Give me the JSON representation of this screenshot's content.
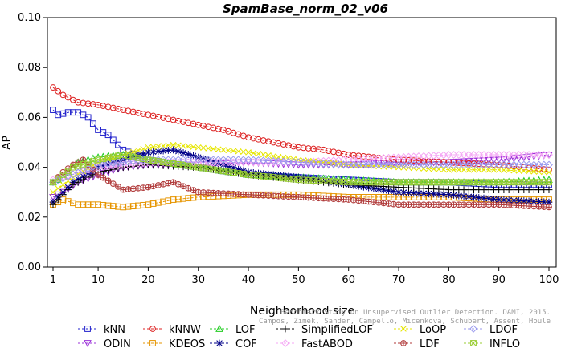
{
  "chart_data": {
    "type": "line",
    "title": "SpamBase_norm_02_v06",
    "xlabel": "Neighborhood size",
    "ylabel": "AP",
    "xlim": [
      0,
      100
    ],
    "ylim": [
      0,
      0.1
    ],
    "xticks": [
      1,
      10,
      20,
      30,
      40,
      50,
      60,
      70,
      80,
      90,
      100
    ],
    "yticks": [
      "0.00",
      "0.02",
      "0.04",
      "0.06",
      "0.08",
      "0.10"
    ],
    "grid": false,
    "legend_position": "bottom",
    "watermark": [
      "Benchmark Study on Unsupervised Outlier Detection. DAMI, 2015.",
      "Campos, Zimek, Sander, Campello, Micenkova, Schubert, Assent, Houle"
    ],
    "series": [
      {
        "name": "kNN",
        "color": "#2222cc",
        "marker": "square",
        "x_range": [
          1,
          100
        ],
        "anchors": [
          [
            1,
            0.063
          ],
          [
            2,
            0.061
          ],
          [
            4,
            0.062
          ],
          [
            6,
            0.062
          ],
          [
            8,
            0.06
          ],
          [
            10,
            0.055
          ],
          [
            12,
            0.053
          ],
          [
            15,
            0.047
          ],
          [
            20,
            0.043
          ],
          [
            30,
            0.04
          ],
          [
            40,
            0.037
          ],
          [
            50,
            0.036
          ],
          [
            60,
            0.035
          ],
          [
            70,
            0.034
          ],
          [
            80,
            0.034
          ],
          [
            90,
            0.033
          ],
          [
            100,
            0.033
          ]
        ]
      },
      {
        "name": "ODIN",
        "color": "#9b30d8",
        "marker": "triangle-down",
        "x_range": [
          1,
          100
        ],
        "anchors": [
          [
            1,
            0.028
          ],
          [
            3,
            0.03
          ],
          [
            6,
            0.034
          ],
          [
            10,
            0.037
          ],
          [
            15,
            0.04
          ],
          [
            20,
            0.041
          ],
          [
            30,
            0.041
          ],
          [
            40,
            0.042
          ],
          [
            50,
            0.041
          ],
          [
            60,
            0.041
          ],
          [
            70,
            0.042
          ],
          [
            80,
            0.042
          ],
          [
            90,
            0.043
          ],
          [
            100,
            0.045
          ]
        ]
      },
      {
        "name": "kNNW",
        "color": "#dd2222",
        "marker": "circle",
        "x_range": [
          1,
          100
        ],
        "anchors": [
          [
            1,
            0.072
          ],
          [
            3,
            0.069
          ],
          [
            6,
            0.066
          ],
          [
            10,
            0.065
          ],
          [
            15,
            0.063
          ],
          [
            20,
            0.061
          ],
          [
            25,
            0.059
          ],
          [
            30,
            0.057
          ],
          [
            35,
            0.055
          ],
          [
            40,
            0.052
          ],
          [
            45,
            0.05
          ],
          [
            50,
            0.048
          ],
          [
            55,
            0.047
          ],
          [
            60,
            0.045
          ],
          [
            65,
            0.044
          ],
          [
            70,
            0.043
          ],
          [
            80,
            0.042
          ],
          [
            90,
            0.041
          ],
          [
            100,
            0.039
          ]
        ]
      },
      {
        "name": "KDEOS",
        "color": "#e69500",
        "marker": "square",
        "x_range": [
          1,
          100
        ],
        "anchors": [
          [
            1,
            0.025
          ],
          [
            3,
            0.027
          ],
          [
            6,
            0.025
          ],
          [
            10,
            0.025
          ],
          [
            15,
            0.024
          ],
          [
            20,
            0.025
          ],
          [
            25,
            0.027
          ],
          [
            30,
            0.028
          ],
          [
            40,
            0.029
          ],
          [
            50,
            0.029
          ],
          [
            60,
            0.028
          ],
          [
            70,
            0.028
          ],
          [
            80,
            0.028
          ],
          [
            90,
            0.027
          ],
          [
            100,
            0.027
          ]
        ]
      },
      {
        "name": "LOF",
        "color": "#22cc22",
        "marker": "triangle-up",
        "x_range": [
          1,
          100
        ],
        "anchors": [
          [
            1,
            0.034
          ],
          [
            3,
            0.036
          ],
          [
            6,
            0.042
          ],
          [
            10,
            0.044
          ],
          [
            15,
            0.045
          ],
          [
            20,
            0.043
          ],
          [
            30,
            0.04
          ],
          [
            40,
            0.037
          ],
          [
            50,
            0.036
          ],
          [
            60,
            0.035
          ],
          [
            70,
            0.034
          ],
          [
            80,
            0.034
          ],
          [
            90,
            0.034
          ],
          [
            100,
            0.035
          ]
        ]
      },
      {
        "name": "COF",
        "color": "#000088",
        "marker": "asterisk",
        "x_range": [
          1,
          100
        ],
        "anchors": [
          [
            1,
            0.026
          ],
          [
            5,
            0.034
          ],
          [
            10,
            0.04
          ],
          [
            15,
            0.043
          ],
          [
            20,
            0.046
          ],
          [
            25,
            0.047
          ],
          [
            30,
            0.044
          ],
          [
            40,
            0.038
          ],
          [
            50,
            0.036
          ],
          [
            60,
            0.033
          ],
          [
            70,
            0.03
          ],
          [
            80,
            0.029
          ],
          [
            90,
            0.027
          ],
          [
            100,
            0.026
          ]
        ]
      },
      {
        "name": "SimplifiedLOF",
        "color": "#000000",
        "marker": "plus",
        "x_range": [
          1,
          100
        ],
        "anchors": [
          [
            1,
            0.025
          ],
          [
            5,
            0.033
          ],
          [
            10,
            0.038
          ],
          [
            15,
            0.04
          ],
          [
            20,
            0.041
          ],
          [
            30,
            0.04
          ],
          [
            40,
            0.037
          ],
          [
            50,
            0.035
          ],
          [
            60,
            0.033
          ],
          [
            70,
            0.032
          ],
          [
            80,
            0.031
          ],
          [
            90,
            0.031
          ],
          [
            100,
            0.031
          ]
        ]
      },
      {
        "name": "FastABOD",
        "color": "#f4a6f4",
        "marker": "diamond",
        "x_range": [
          1,
          100
        ],
        "anchors": [
          [
            1,
            0.035
          ],
          [
            10,
            0.04
          ],
          [
            20,
            0.042
          ],
          [
            30,
            0.042
          ],
          [
            40,
            0.042
          ],
          [
            50,
            0.042
          ],
          [
            60,
            0.043
          ],
          [
            70,
            0.044
          ],
          [
            80,
            0.045
          ],
          [
            90,
            0.045
          ],
          [
            100,
            0.045
          ]
        ]
      },
      {
        "name": "LoOP",
        "color": "#e6e600",
        "marker": "cross",
        "x_range": [
          1,
          100
        ],
        "anchors": [
          [
            1,
            0.03
          ],
          [
            5,
            0.036
          ],
          [
            10,
            0.042
          ],
          [
            15,
            0.045
          ],
          [
            20,
            0.048
          ],
          [
            25,
            0.049
          ],
          [
            30,
            0.048
          ],
          [
            40,
            0.046
          ],
          [
            50,
            0.043
          ],
          [
            60,
            0.041
          ],
          [
            70,
            0.04
          ],
          [
            80,
            0.039
          ],
          [
            90,
            0.039
          ],
          [
            100,
            0.038
          ]
        ]
      },
      {
        "name": "LDF",
        "color": "#b03a3a",
        "marker": "circle-plus",
        "x_range": [
          1,
          100
        ],
        "anchors": [
          [
            1,
            0.034
          ],
          [
            3,
            0.038
          ],
          [
            5,
            0.041
          ],
          [
            7,
            0.043
          ],
          [
            10,
            0.037
          ],
          [
            15,
            0.031
          ],
          [
            20,
            0.032
          ],
          [
            25,
            0.034
          ],
          [
            30,
            0.03
          ],
          [
            40,
            0.029
          ],
          [
            50,
            0.028
          ],
          [
            60,
            0.027
          ],
          [
            70,
            0.025
          ],
          [
            80,
            0.025
          ],
          [
            90,
            0.025
          ],
          [
            100,
            0.024
          ]
        ]
      },
      {
        "name": "LDOF",
        "color": "#9999ee",
        "marker": "diamond",
        "x_range": [
          1,
          100
        ],
        "anchors": [
          [
            1,
            0.034
          ],
          [
            10,
            0.041
          ],
          [
            20,
            0.043
          ],
          [
            30,
            0.043
          ],
          [
            40,
            0.043
          ],
          [
            50,
            0.042
          ],
          [
            60,
            0.041
          ],
          [
            70,
            0.041
          ],
          [
            80,
            0.041
          ],
          [
            90,
            0.041
          ],
          [
            100,
            0.041
          ]
        ]
      },
      {
        "name": "INFLO",
        "color": "#99cc33",
        "marker": "square-x",
        "x_range": [
          1,
          100
        ],
        "anchors": [
          [
            1,
            0.034
          ],
          [
            5,
            0.04
          ],
          [
            10,
            0.043
          ],
          [
            15,
            0.045
          ],
          [
            20,
            0.043
          ],
          [
            30,
            0.04
          ],
          [
            40,
            0.037
          ],
          [
            50,
            0.035
          ],
          [
            60,
            0.034
          ],
          [
            70,
            0.034
          ],
          [
            80,
            0.034
          ],
          [
            90,
            0.034
          ],
          [
            100,
            0.034
          ]
        ]
      }
    ]
  }
}
